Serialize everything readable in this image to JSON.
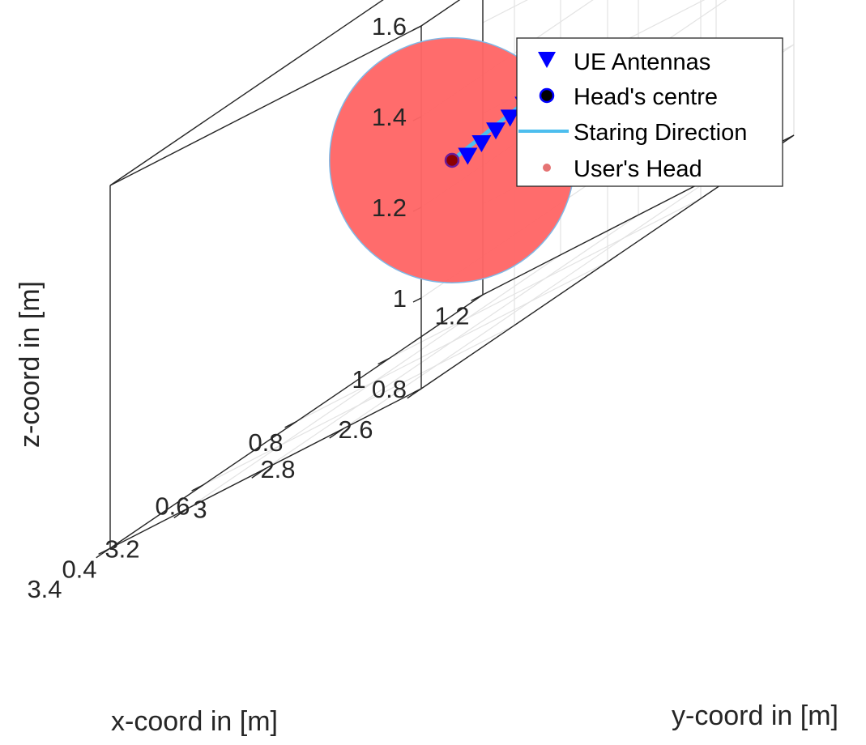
{
  "chart_data": {
    "type": "scatter3d",
    "xlabel": "x-coord in [m]",
    "ylabel": "y-coord in [m]",
    "zlabel": "z-coord in [m]",
    "xlim": [
      2.6,
      3.4
    ],
    "ylim": [
      0.4,
      1.2
    ],
    "zlim": [
      0.8,
      1.6
    ],
    "x_ticks": [
      "2.6",
      "2.8",
      "3",
      "3.2",
      "3.4"
    ],
    "y_ticks": [
      "0.4",
      "0.6",
      "0.8",
      "1",
      "1.2"
    ],
    "z_ticks": [
      "0.8",
      "1",
      "1.2",
      "1.4",
      "1.6"
    ],
    "grid": true,
    "box": true,
    "legend_position": "top-right",
    "legend": [
      {
        "label": "UE Antennas",
        "marker": "triangle-down",
        "color": "#0000ff"
      },
      {
        "label": "Head's centre",
        "marker": "circle",
        "color": "#000000"
      },
      {
        "label": "Staring Direction",
        "marker": "line",
        "color": "#4dbeee"
      },
      {
        "label": "User's Head",
        "marker": "point",
        "color": "#ff6666"
      }
    ],
    "series": [
      {
        "name": "UE Antennas",
        "type": "scatter",
        "color": "#0000ff",
        "points": [
          {
            "x": 3.046,
            "y": 0.872,
            "z": 1.178
          },
          {
            "x": 3.038,
            "y": 0.895,
            "z": 1.186
          },
          {
            "x": 3.03,
            "y": 0.919,
            "z": 1.194
          },
          {
            "x": 3.022,
            "y": 0.943,
            "z": 1.202
          },
          {
            "x": 3.014,
            "y": 0.967,
            "z": 1.21
          },
          {
            "x": 3.006,
            "y": 0.99,
            "z": 1.218
          }
        ]
      },
      {
        "name": "Head's centre",
        "type": "scatter",
        "color": "#000000",
        "points": [
          {
            "x": 3.0,
            "y": 0.8,
            "z": 1.2
          }
        ]
      },
      {
        "name": "Staring Direction",
        "type": "line",
        "color": "#4dbeee",
        "points": [
          {
            "x": 3.0,
            "y": 0.8,
            "z": 1.2
          },
          {
            "x": 3.2,
            "y": 1.2,
            "z": 1.2
          }
        ]
      },
      {
        "name": "User's Head",
        "type": "sphere",
        "color": "#ff6666",
        "center": {
          "x": 3.0,
          "y": 0.8,
          "z": 1.2
        },
        "radius": 0.27
      }
    ]
  }
}
